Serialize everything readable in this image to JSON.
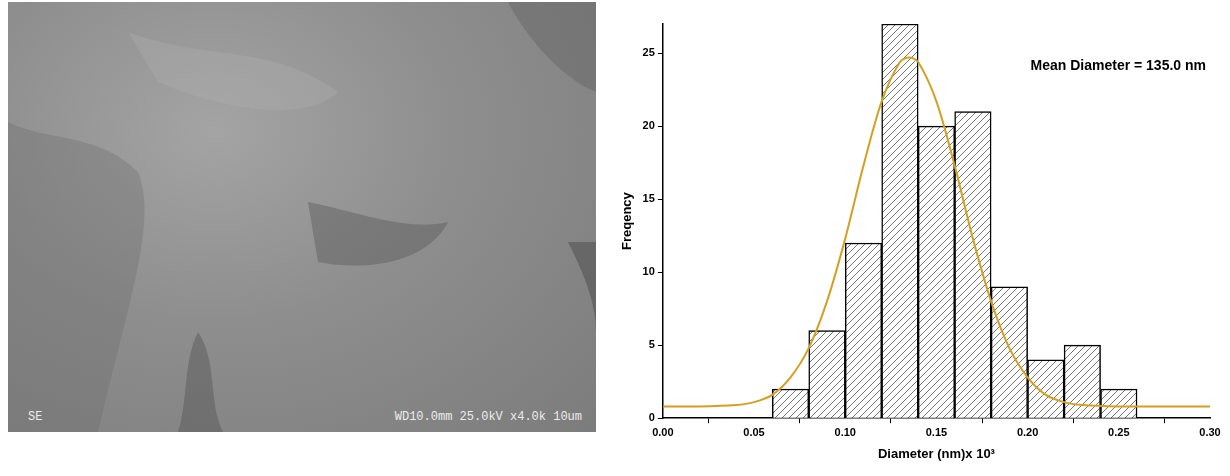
{
  "micrograph": {
    "detector": "SE",
    "info": "WD10.0mm 25.0kV x4.0k 10um"
  },
  "chart_data": {
    "type": "histogram",
    "annotation": "Mean Diameter = 135.0 nm",
    "x_label": "Diameter (nm)x 10³",
    "y_label": "Freqency",
    "bins": [
      0.04,
      0.06,
      0.08,
      0.1,
      0.12,
      0.14,
      0.16,
      0.18,
      0.2,
      0.22,
      0.24,
      0.26
    ],
    "values": [
      0,
      2,
      6,
      12,
      27,
      20,
      21,
      9,
      4,
      5,
      2
    ],
    "color": "#000000",
    "fit": {
      "type": "line",
      "color": "#d4a020",
      "x": [
        0,
        0.02,
        0.04,
        0.05,
        0.06,
        0.07,
        0.08,
        0.09,
        0.1,
        0.11,
        0.12,
        0.13,
        0.135,
        0.14,
        0.15,
        0.16,
        0.17,
        0.18,
        0.19,
        0.2,
        0.21,
        0.22,
        0.23,
        0.25,
        0.27,
        0.3
      ],
      "values": [
        0.8,
        0.8,
        0.9,
        1.1,
        1.6,
        2.8,
        4.8,
        8.0,
        12.3,
        17.3,
        21.7,
        24.4,
        24.7,
        24.4,
        21.7,
        17.3,
        12.3,
        8.0,
        4.8,
        2.8,
        1.6,
        1.1,
        0.9,
        0.8,
        0.8,
        0.8
      ]
    },
    "xlim": [
      0,
      0.3
    ],
    "xticks": [
      {
        "value": 0,
        "label": "0.00"
      },
      0.05,
      {
        "value": 0.1,
        "label": "0.10"
      },
      0.15,
      {
        "value": 0.2,
        "label": "0.20"
      },
      0.25,
      {
        "value": 0.3,
        "label": "0.30"
      }
    ],
    "ylim": [
      0,
      27
    ],
    "yticks": [
      0,
      5,
      10,
      15,
      20,
      25
    ],
    "grid": false
  }
}
